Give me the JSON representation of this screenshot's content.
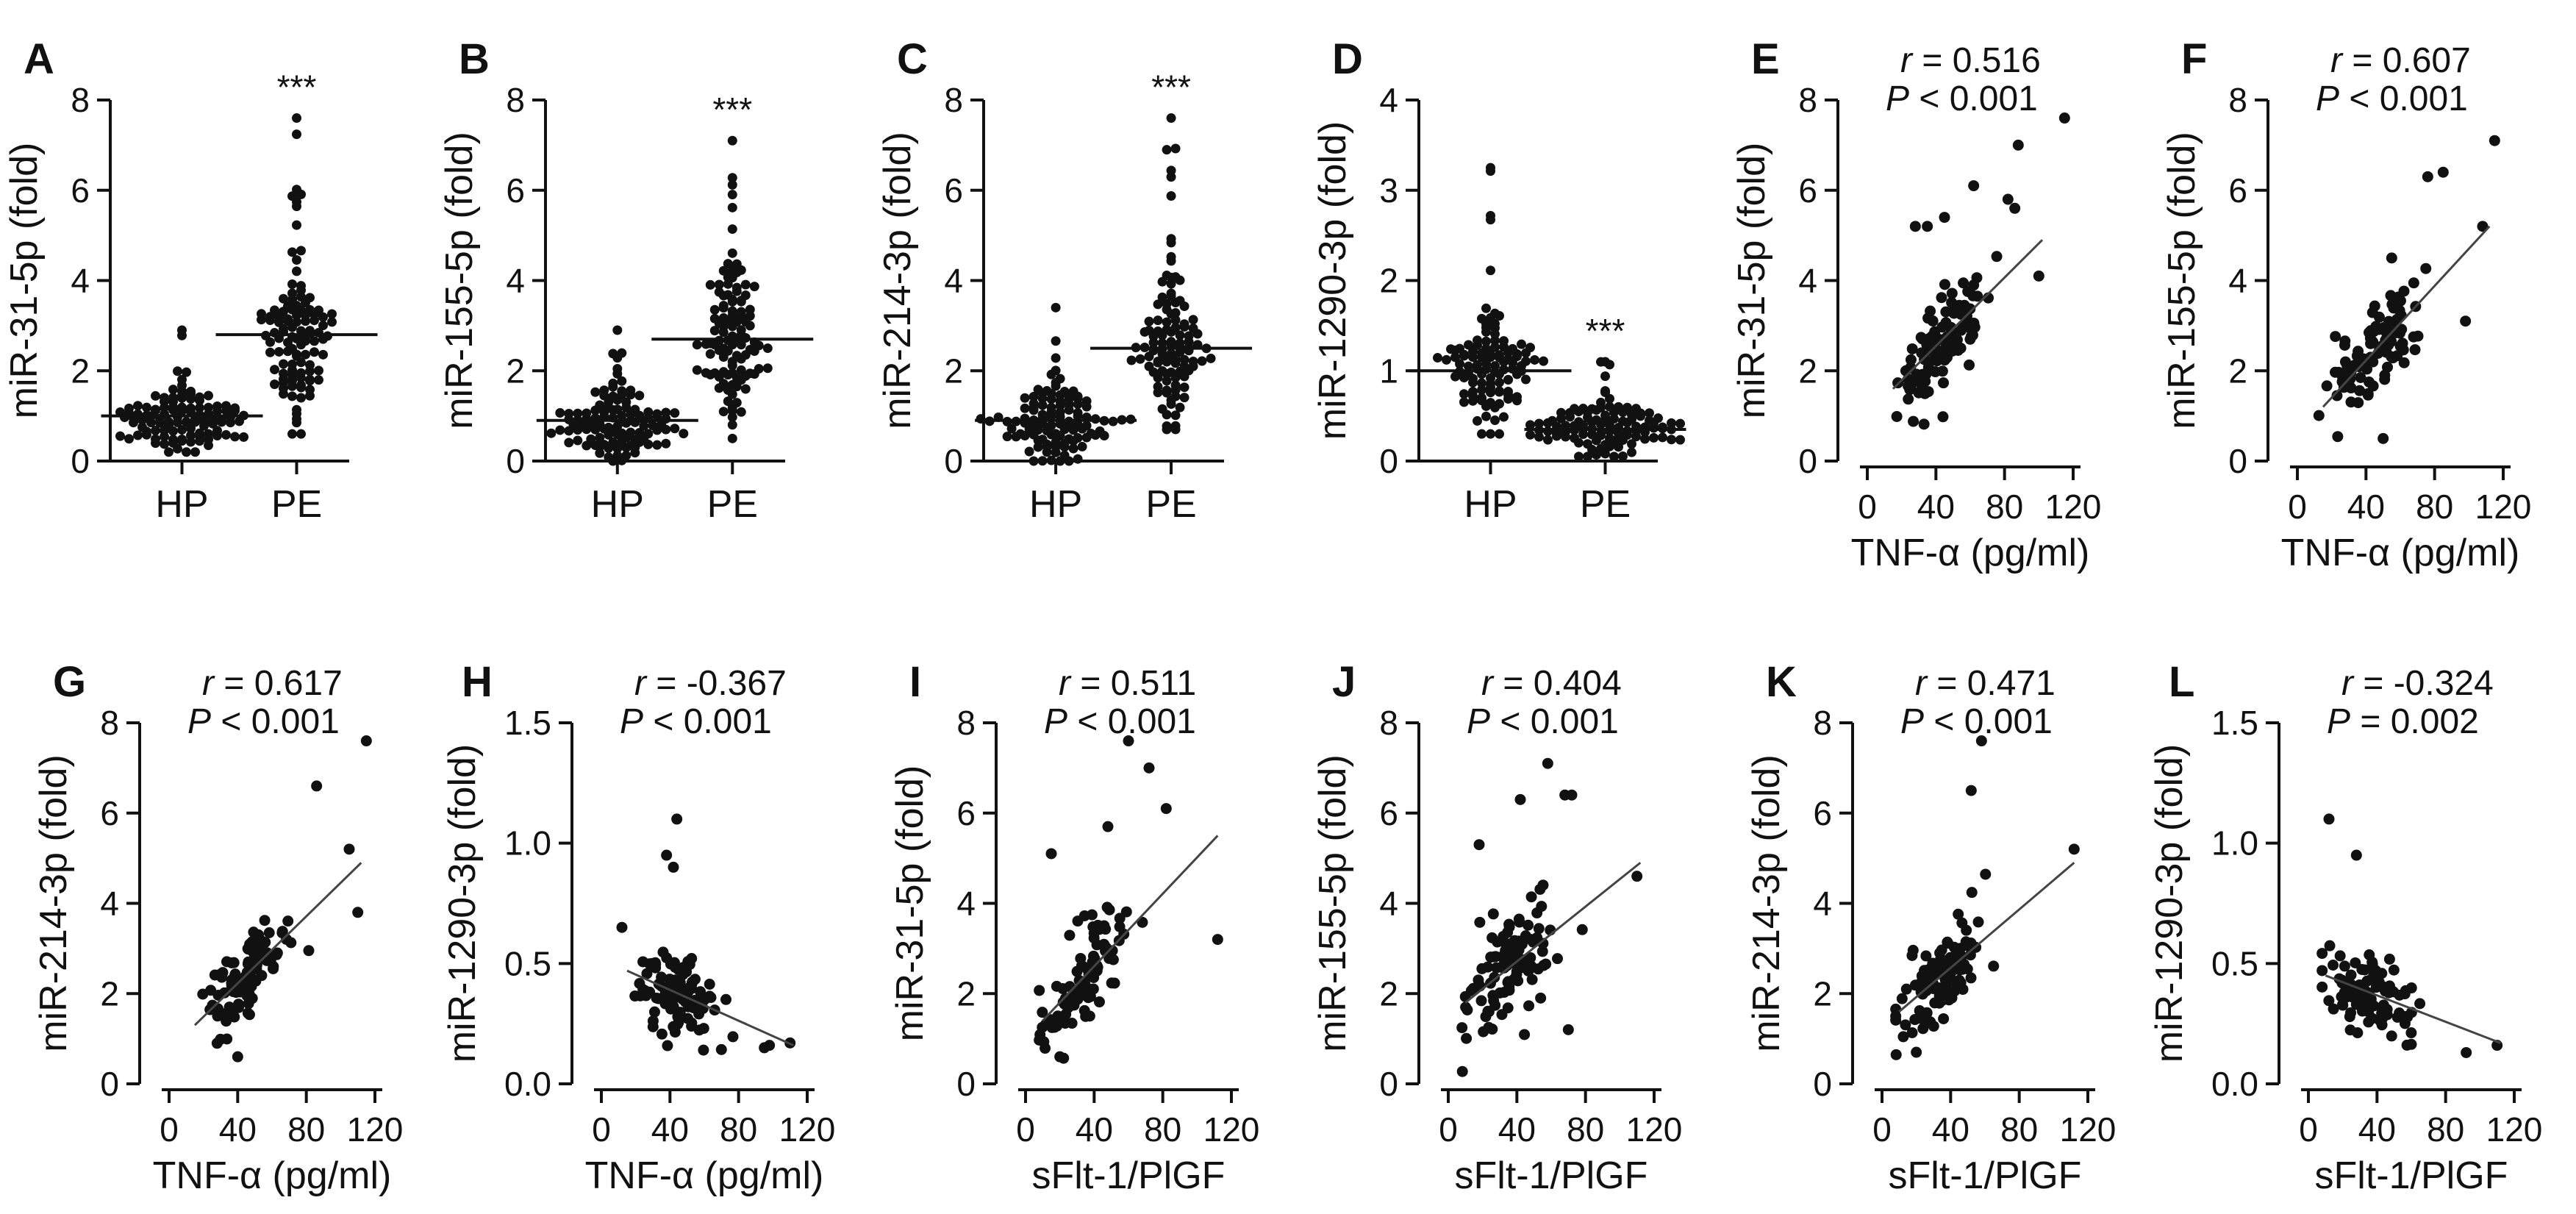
{
  "chart_data": [
    {
      "panel": "A",
      "type": "scatter",
      "subtype": "dot-strip",
      "ylabel": "miR-31-5p (fold)",
      "ylim": [
        0,
        8
      ],
      "yticks": [
        "0",
        "2",
        "4",
        "6",
        "8"
      ],
      "categories": [
        "HP",
        "PE"
      ],
      "series": [
        {
          "name": "HP",
          "n": 110,
          "center": 0.9,
          "spread": 0.45,
          "min": 0.2,
          "max": 2.9,
          "mean": 1.0
        },
        {
          "name": "PE",
          "n": 110,
          "center": 2.8,
          "spread": 1.1,
          "min": 0.6,
          "max": 7.6,
          "mean": 2.8
        }
      ],
      "annotation": {
        "label": "***",
        "category": "PE"
      }
    },
    {
      "panel": "B",
      "type": "scatter",
      "subtype": "dot-strip",
      "ylabel": "miR-155-5p (fold)",
      "ylim": [
        0,
        8
      ],
      "yticks": [
        "0",
        "2",
        "4",
        "6",
        "8"
      ],
      "categories": [
        "HP",
        "PE"
      ],
      "series": [
        {
          "name": "HP",
          "n": 110,
          "center": 0.8,
          "spread": 0.5,
          "min": 0.0,
          "max": 2.9,
          "mean": 0.9
        },
        {
          "name": "PE",
          "n": 110,
          "center": 2.6,
          "spread": 1.1,
          "min": 0.5,
          "max": 7.1,
          "mean": 2.7
        }
      ],
      "annotation": {
        "label": "***",
        "category": "PE"
      }
    },
    {
      "panel": "C",
      "type": "scatter",
      "subtype": "dot-strip",
      "ylabel": "miR-214-3p (fold)",
      "ylim": [
        0,
        8
      ],
      "yticks": [
        "0",
        "2",
        "4",
        "6",
        "8"
      ],
      "categories": [
        "HP",
        "PE"
      ],
      "series": [
        {
          "name": "HP",
          "n": 110,
          "center": 0.9,
          "spread": 0.6,
          "min": 0.0,
          "max": 3.4,
          "mean": 0.9
        },
        {
          "name": "PE",
          "n": 110,
          "center": 2.5,
          "spread": 1.0,
          "min": 0.7,
          "max": 7.6,
          "mean": 2.5
        }
      ],
      "annotation": {
        "label": "***",
        "category": "PE"
      }
    },
    {
      "panel": "D",
      "type": "scatter",
      "subtype": "dot-strip",
      "ylabel": "miR-1290-3p (fold)",
      "ylim": [
        0,
        4
      ],
      "yticks": [
        "0",
        "1",
        "2",
        "3",
        "4"
      ],
      "categories": [
        "HP",
        "PE"
      ],
      "series": [
        {
          "name": "HP",
          "n": 110,
          "center": 1.0,
          "spread": 0.4,
          "min": 0.3,
          "max": 3.25,
          "mean": 1.0
        },
        {
          "name": "PE",
          "n": 110,
          "center": 0.35,
          "spread": 0.2,
          "min": 0.05,
          "max": 1.1,
          "mean": 0.35
        }
      ],
      "annotation": {
        "label": "***",
        "category": "PE"
      }
    },
    {
      "panel": "E",
      "type": "scatter",
      "xlabel": "TNF-α (pg/ml)",
      "ylabel": "miR-31-5p (fold)",
      "xlim": [
        0,
        120
      ],
      "ylim": [
        0,
        8
      ],
      "xticks": [
        "0",
        "40",
        "80",
        "120"
      ],
      "yticks": [
        "0",
        "2",
        "4",
        "6",
        "8"
      ],
      "stat": {
        "r_label": "r",
        "r_text": " = 0.516",
        "p_label": "P",
        "p_text": " < 0.001"
      },
      "fit": {
        "x": [
          15,
          102
        ],
        "y": [
          1.6,
          4.9
        ]
      },
      "n": 100,
      "x_center": 45,
      "x_spread": 18,
      "slope": 0.038,
      "noise": 0.9,
      "points": [
        [
          115,
          7.6
        ],
        [
          88,
          7.0
        ],
        [
          62,
          6.1
        ],
        [
          82,
          5.8
        ],
        [
          86,
          5.6
        ],
        [
          45,
          5.4
        ],
        [
          28,
          5.2
        ],
        [
          35,
          5.2
        ],
        [
          100,
          4.1
        ],
        [
          62,
          3.9
        ]
      ]
    },
    {
      "panel": "F",
      "type": "scatter",
      "xlabel": "TNF-α (pg/ml)",
      "ylabel": "miR-155-5p (fold)",
      "xlim": [
        0,
        120
      ],
      "ylim": [
        0,
        8
      ],
      "xticks": [
        "0",
        "40",
        "80",
        "120"
      ],
      "yticks": [
        "0",
        "2",
        "4",
        "6",
        "8"
      ],
      "stat": {
        "r_label": "r",
        "r_text": " = 0.607",
        "p_label": "P",
        "p_text": " < 0.001"
      },
      "fit": {
        "x": [
          15,
          112
        ],
        "y": [
          1.2,
          5.2
        ]
      },
      "n": 100,
      "x_center": 45,
      "x_spread": 18,
      "slope": 0.042,
      "noise": 0.8,
      "points": [
        [
          115,
          7.1
        ],
        [
          85,
          6.4
        ],
        [
          76,
          6.3
        ],
        [
          108,
          5.2
        ],
        [
          98,
          3.1
        ],
        [
          55,
          4.5
        ],
        [
          50,
          0.5
        ]
      ]
    },
    {
      "panel": "G",
      "type": "scatter",
      "xlabel": "TNF-α (pg/ml)",
      "ylabel": "miR-214-3p (fold)",
      "xlim": [
        0,
        120
      ],
      "ylim": [
        0,
        8
      ],
      "xticks": [
        "0",
        "40",
        "80",
        "120"
      ],
      "yticks": [
        "0",
        "2",
        "4",
        "6",
        "8"
      ],
      "stat": {
        "r_label": "r",
        "r_text": " = 0.617",
        "p_label": "P",
        "p_text": " < 0.001"
      },
      "fit": {
        "x": [
          15,
          112
        ],
        "y": [
          1.3,
          4.9
        ]
      },
      "n": 100,
      "x_center": 45,
      "x_spread": 18,
      "slope": 0.038,
      "noise": 0.75,
      "points": [
        [
          115,
          7.6
        ],
        [
          86,
          6.6
        ],
        [
          105,
          5.2
        ],
        [
          110,
          3.8
        ],
        [
          40,
          0.6
        ],
        [
          28,
          0.9
        ]
      ]
    },
    {
      "panel": "H",
      "type": "scatter",
      "xlabel": "TNF-α (pg/ml)",
      "ylabel": "miR-1290-3p (fold)",
      "xlim": [
        0,
        120
      ],
      "ylim": [
        0,
        1.5
      ],
      "xticks": [
        "0",
        "40",
        "80",
        "120"
      ],
      "yticks": [
        "0.0",
        "0.5",
        "1.0",
        "1.5"
      ],
      "stat": {
        "r_label": "r",
        "r_text": " = -0.367",
        "p_label": "P",
        "p_text": " < 0.001"
      },
      "fit": {
        "x": [
          15,
          112
        ],
        "y": [
          0.47,
          0.16
        ]
      },
      "n": 100,
      "x_center": 45,
      "x_spread": 18,
      "slope": -0.0032,
      "noise": 0.15,
      "points": [
        [
          44,
          1.1
        ],
        [
          38,
          0.95
        ],
        [
          42,
          0.9
        ],
        [
          12,
          0.65
        ],
        [
          110,
          0.17
        ],
        [
          98,
          0.16
        ],
        [
          95,
          0.15
        ]
      ]
    },
    {
      "panel": "I",
      "type": "scatter",
      "xlabel": "sFlt-1/PlGF",
      "ylabel": "miR-31-5p (fold)",
      "xlim": [
        0,
        120
      ],
      "ylim": [
        0,
        8
      ],
      "xticks": [
        "0",
        "40",
        "80",
        "120"
      ],
      "yticks": [
        "0",
        "2",
        "4",
        "6",
        "8"
      ],
      "stat": {
        "r_label": "r",
        "r_text": " = 0.511",
        "p_label": "P",
        "p_text": " < 0.001"
      },
      "fit": {
        "x": [
          10,
          112
        ],
        "y": [
          1.4,
          5.5
        ]
      },
      "n": 100,
      "x_center": 35,
      "x_spread": 18,
      "slope": 0.04,
      "noise": 1.0,
      "points": [
        [
          60,
          7.6
        ],
        [
          72,
          7.0
        ],
        [
          82,
          6.1
        ],
        [
          48,
          5.7
        ],
        [
          15,
          5.1
        ],
        [
          112,
          3.2
        ],
        [
          20,
          0.6
        ]
      ]
    },
    {
      "panel": "J",
      "type": "scatter",
      "xlabel": "sFlt-1/PlGF",
      "ylabel": "miR-155-5p (fold)",
      "xlim": [
        0,
        120
      ],
      "ylim": [
        0,
        8
      ],
      "xticks": [
        "0",
        "40",
        "80",
        "120"
      ],
      "yticks": [
        "0",
        "2",
        "4",
        "6",
        "8"
      ],
      "stat": {
        "r_label": "r",
        "r_text": " = 0.404",
        "p_label": "P",
        "p_text": " < 0.001"
      },
      "fit": {
        "x": [
          10,
          112
        ],
        "y": [
          1.8,
          4.9
        ]
      },
      "n": 100,
      "x_center": 35,
      "x_spread": 18,
      "slope": 0.03,
      "noise": 1.0,
      "points": [
        [
          58,
          7.1
        ],
        [
          68,
          6.4
        ],
        [
          72,
          6.4
        ],
        [
          42,
          6.3
        ],
        [
          18,
          5.3
        ],
        [
          110,
          4.6
        ],
        [
          70,
          1.2
        ]
      ]
    },
    {
      "panel": "K",
      "type": "scatter",
      "xlabel": "sFlt-1/PlGF",
      "ylabel": "miR-214-3p (fold)",
      "xlim": [
        0,
        120
      ],
      "ylim": [
        0,
        8
      ],
      "xticks": [
        "0",
        "40",
        "80",
        "120"
      ],
      "yticks": [
        "0",
        "2",
        "4",
        "6",
        "8"
      ],
      "stat": {
        "r_label": "r",
        "r_text": " = 0.471",
        "p_label": "P",
        "p_text": " < 0.001"
      },
      "fit": {
        "x": [
          10,
          112
        ],
        "y": [
          1.6,
          4.9
        ]
      },
      "n": 100,
      "x_center": 35,
      "x_spread": 18,
      "slope": 0.033,
      "noise": 0.9,
      "points": [
        [
          58,
          7.6
        ],
        [
          52,
          6.5
        ],
        [
          112,
          5.2
        ],
        [
          20,
          0.7
        ]
      ]
    },
    {
      "panel": "L",
      "type": "scatter",
      "xlabel": "sFlt-1/PlGF",
      "ylabel": "miR-1290-3p (fold)",
      "xlim": [
        0,
        120
      ],
      "ylim": [
        0,
        1.5
      ],
      "xticks": [
        "0",
        "40",
        "80",
        "120"
      ],
      "yticks": [
        "0.0",
        "0.5",
        "1.0",
        "1.5"
      ],
      "stat": {
        "r_label": "r",
        "r_text": " = -0.324",
        "p_label": "P",
        "p_text": " = 0.002"
      },
      "fit": {
        "x": [
          10,
          112
        ],
        "y": [
          0.45,
          0.17
        ]
      },
      "n": 100,
      "x_center": 35,
      "x_spread": 18,
      "slope": -0.0028,
      "noise": 0.15,
      "points": [
        [
          12,
          1.1
        ],
        [
          28,
          0.95
        ],
        [
          110,
          0.16
        ],
        [
          92,
          0.13
        ]
      ]
    }
  ]
}
